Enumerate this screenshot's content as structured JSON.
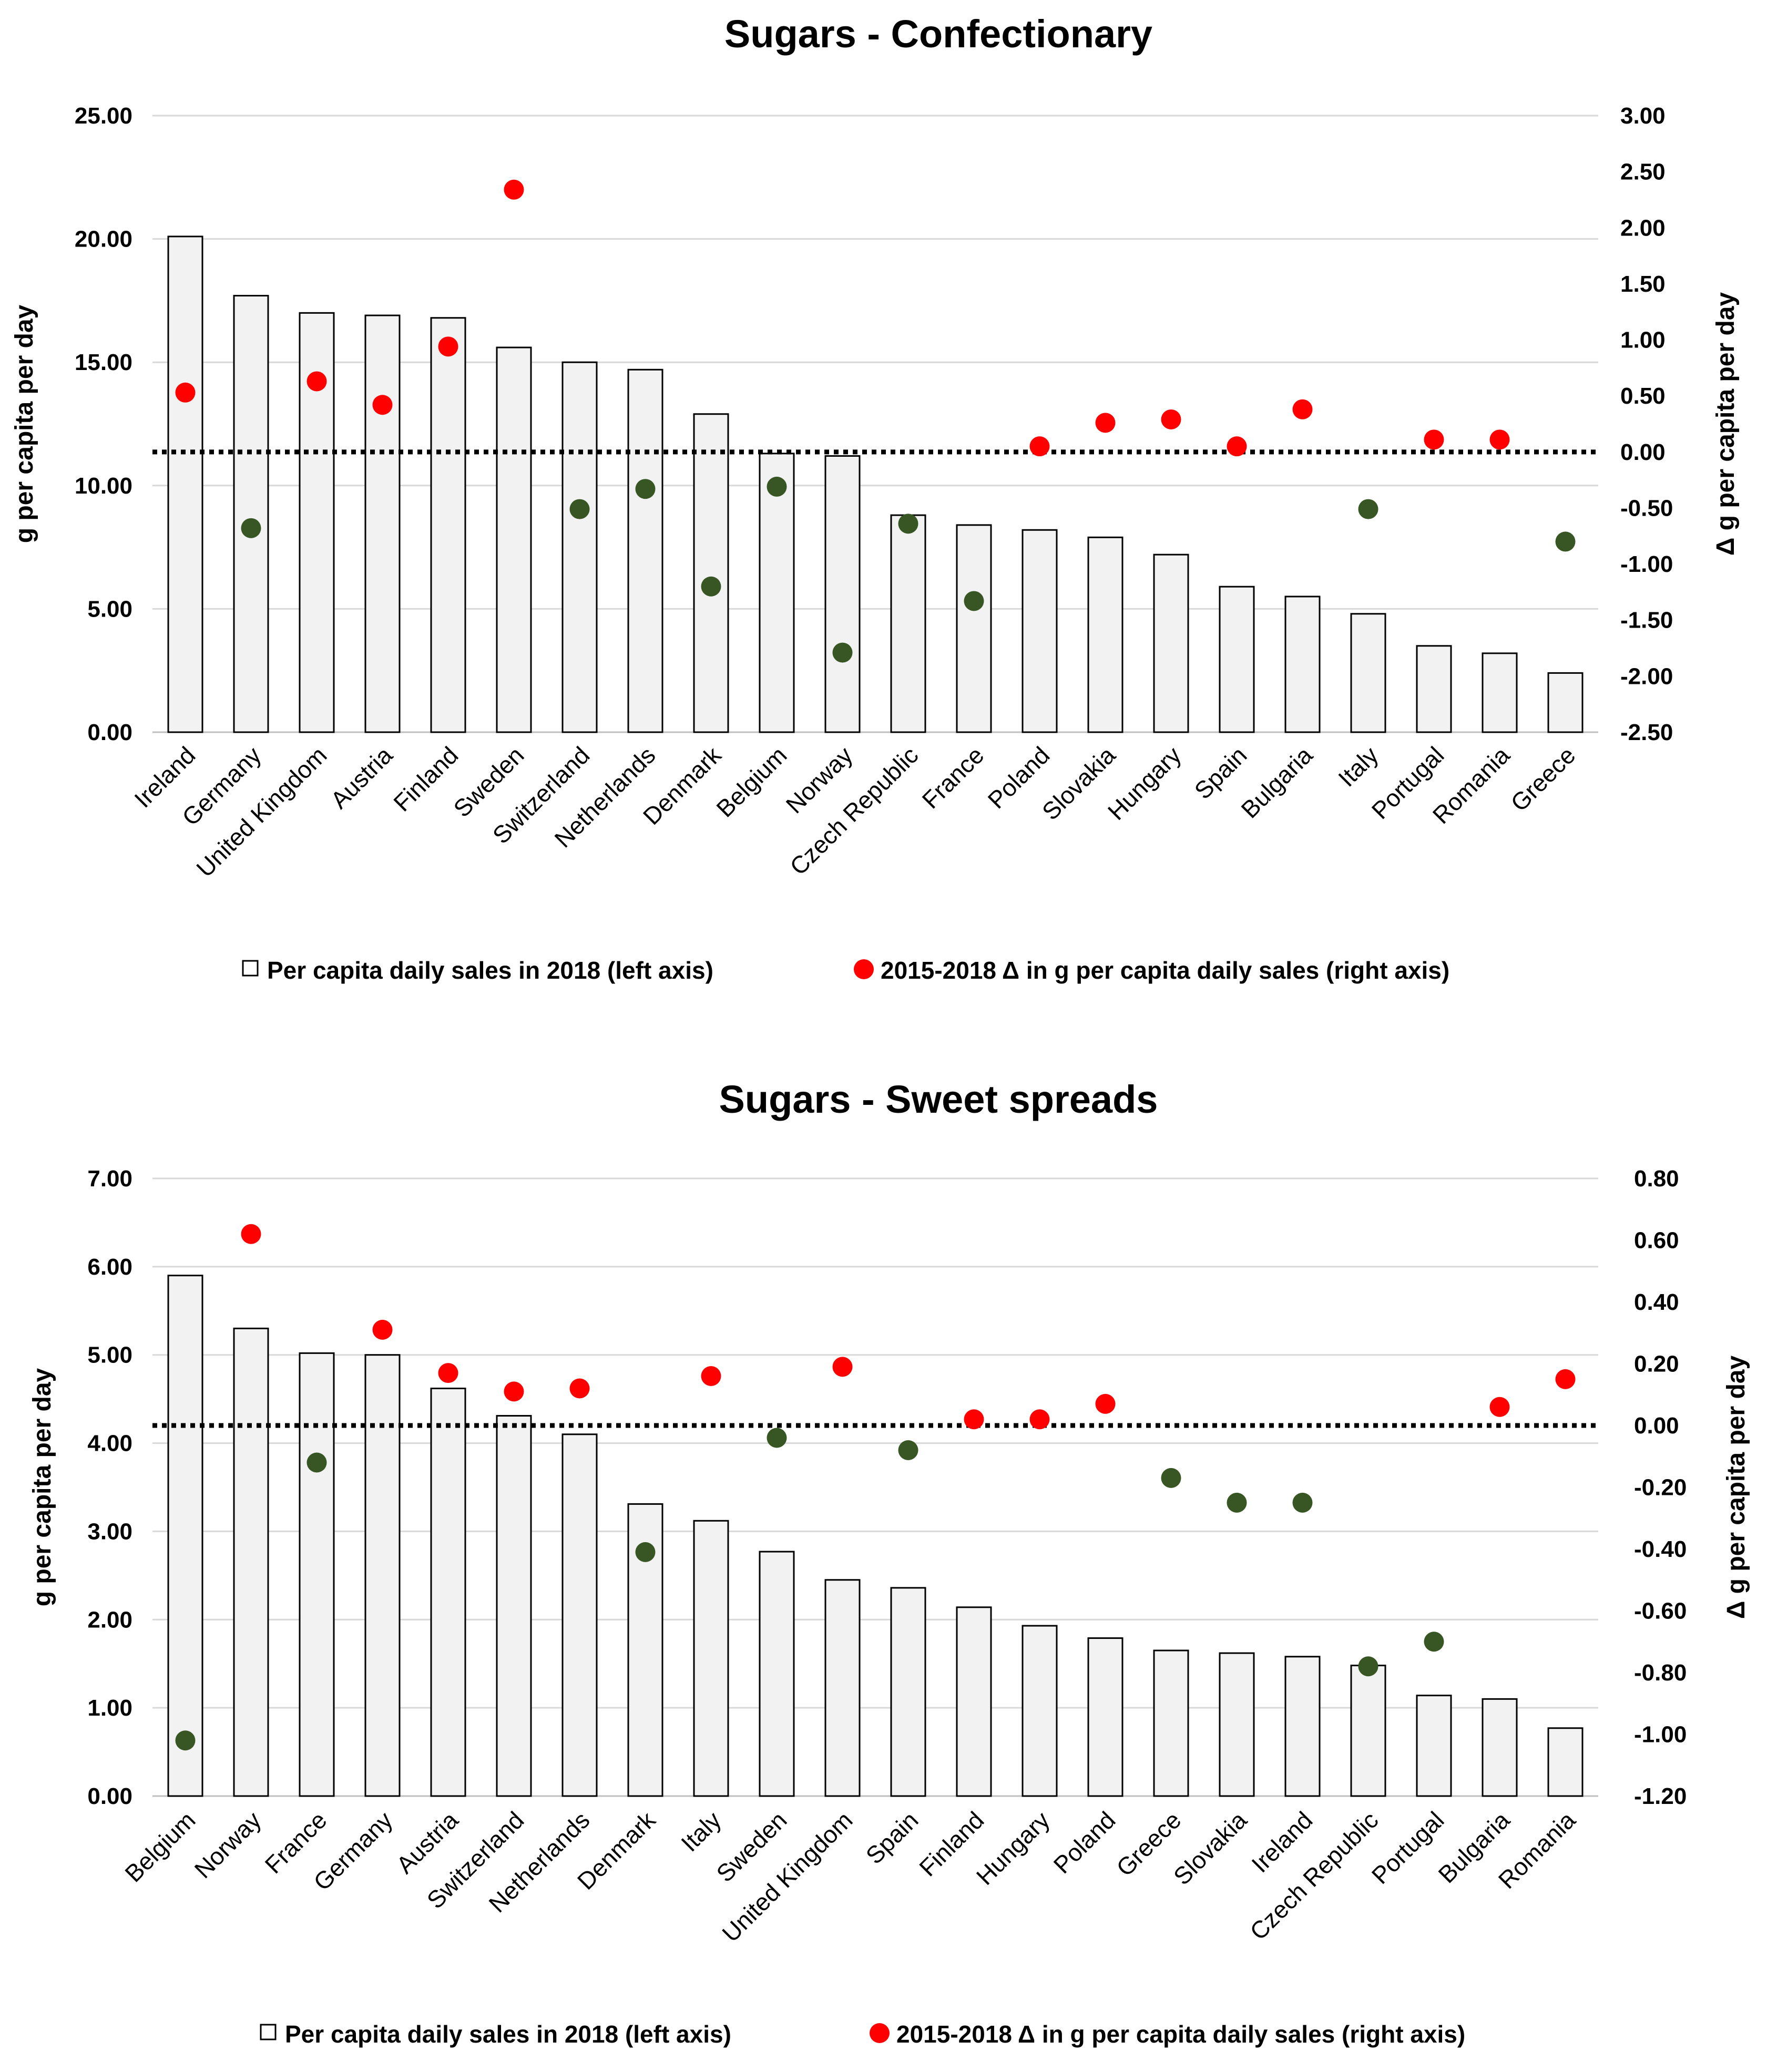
{
  "colors": {
    "positive": "#ff0000",
    "negative": "#375623",
    "bar_fill": "#f2f2f2",
    "bar_stroke": "#000000"
  },
  "chart_data": [
    {
      "type": "bar",
      "title": "Sugars - Confectionary",
      "ylabel": "g per capita per day",
      "y2label": "Δ g per capita per day",
      "ylim": [
        0,
        25
      ],
      "y2lim": [
        -2.5,
        3.0
      ],
      "yticks": [
        "0.00",
        "5.00",
        "10.00",
        "15.00",
        "20.00",
        "25.00"
      ],
      "y2ticks": [
        "-2.50",
        "-2.00",
        "-1.50",
        "-1.00",
        "-0.50",
        "0.00",
        "0.50",
        "1.00",
        "1.50",
        "2.00",
        "2.50",
        "3.00"
      ],
      "grid": true,
      "legend_position": "bottom",
      "categories": [
        "Ireland",
        "Germany",
        "United Kingdom",
        "Austria",
        "Finland",
        "Sweden",
        "Switzerland",
        "Netherlands",
        "Denmark",
        "Belgium",
        "Norway",
        "Czech Republic",
        "France",
        "Poland",
        "Slovakia",
        "Hungary",
        "Spain",
        "Bulgaria",
        "Italy",
        "Portugal",
        "Romania",
        "Greece"
      ],
      "series": [
        {
          "name": "Per capita daily sales in 2018 (left axis)",
          "kind": "bar",
          "axis": "left",
          "values": [
            20.1,
            17.7,
            17.0,
            16.9,
            16.8,
            15.6,
            15.0,
            14.7,
            12.9,
            11.3,
            11.2,
            8.8,
            8.4,
            8.2,
            7.9,
            7.2,
            5.9,
            5.5,
            4.8,
            3.5,
            3.2,
            2.4
          ]
        },
        {
          "name": "2015-2018  Δ in g per capita daily sales (right axis)",
          "kind": "scatter",
          "axis": "right",
          "values": [
            0.53,
            -0.68,
            0.63,
            0.42,
            0.94,
            2.34,
            -0.51,
            -0.33,
            -1.2,
            -0.31,
            -1.79,
            -0.64,
            -1.33,
            0.05,
            0.26,
            0.29,
            0.05,
            0.38,
            -0.51,
            0.11,
            0.11,
            -0.8
          ]
        }
      ]
    },
    {
      "type": "bar",
      "title": "Sugars - Sweet spreads",
      "ylabel": "g per capita per day",
      "y2label": "Δ g per capita per day",
      "ylim": [
        0,
        7
      ],
      "y2lim": [
        -1.2,
        0.8
      ],
      "yticks": [
        "0.00",
        "1.00",
        "2.00",
        "3.00",
        "4.00",
        "5.00",
        "6.00",
        "7.00"
      ],
      "y2ticks": [
        "-1.20",
        "-1.00",
        "-0.80",
        "-0.60",
        "-0.40",
        "-0.20",
        "0.00",
        "0.20",
        "0.40",
        "0.60",
        "0.80"
      ],
      "grid": true,
      "legend_position": "bottom",
      "categories": [
        "Belgium",
        "Norway",
        "France",
        "Germany",
        "Austria",
        "Switzerland",
        "Netherlands",
        "Denmark",
        "Italy",
        "Sweden",
        "United Kingdom",
        "Spain",
        "Finland",
        "Hungary",
        "Poland",
        "Greece",
        "Slovakia",
        "Ireland",
        "Czech Republic",
        "Portugal",
        "Bulgaria",
        "Romania"
      ],
      "series": [
        {
          "name": "Per capita daily sales in 2018 (left axis)",
          "kind": "bar",
          "axis": "left",
          "values": [
            5.9,
            5.3,
            5.02,
            5.0,
            4.62,
            4.31,
            4.1,
            3.31,
            3.12,
            2.77,
            2.45,
            2.36,
            2.14,
            1.93,
            1.79,
            1.65,
            1.62,
            1.58,
            1.48,
            1.14,
            1.1,
            0.77
          ]
        },
        {
          "name": "2015-2018  Δ in g per capita daily sales (right axis)",
          "kind": "scatter",
          "axis": "right",
          "values": [
            -1.02,
            0.62,
            -0.12,
            0.31,
            0.17,
            0.11,
            0.12,
            -0.41,
            0.16,
            -0.04,
            0.19,
            -0.08,
            0.02,
            0.02,
            0.07,
            -0.17,
            -0.25,
            -0.25,
            -0.78,
            -0.7,
            0.06,
            0.15
          ]
        }
      ]
    }
  ]
}
